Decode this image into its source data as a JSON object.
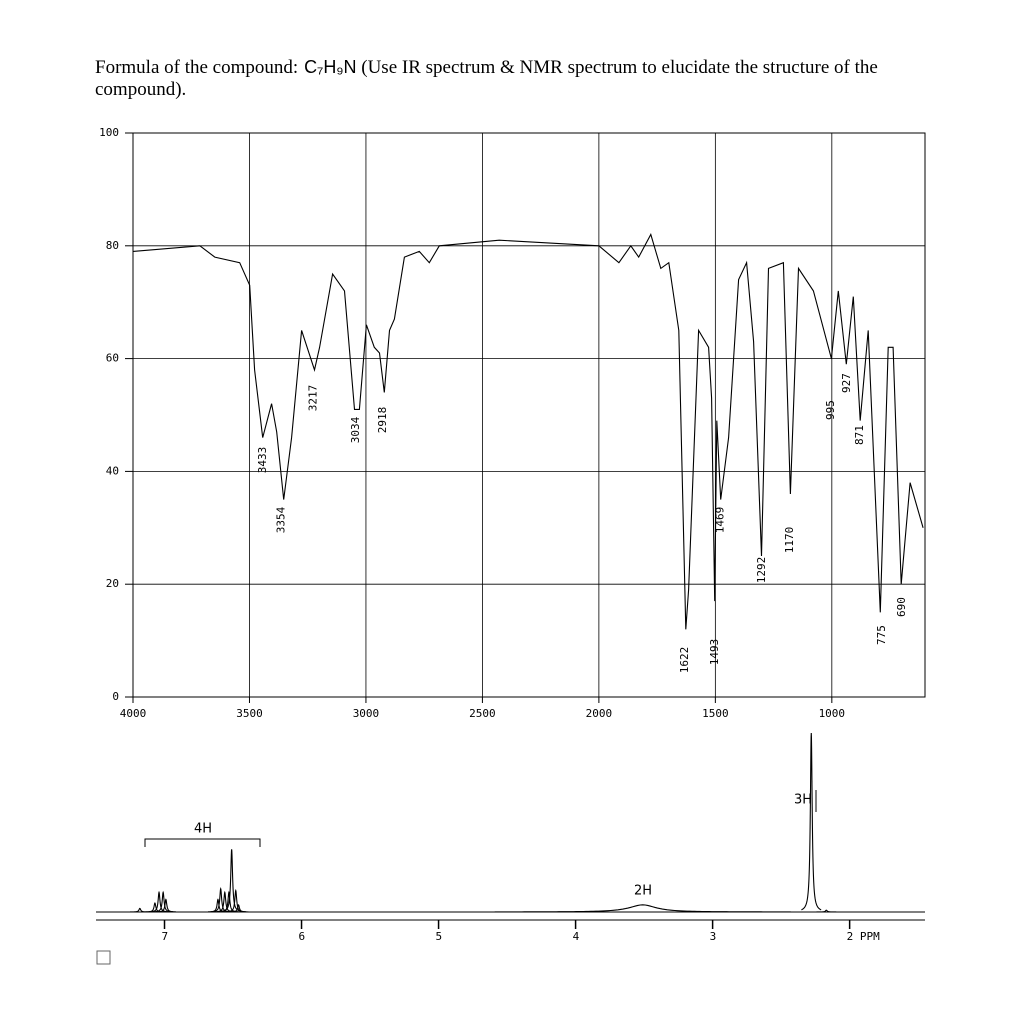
{
  "question": {
    "label": "Formula of the compound:",
    "formula": "C₇H₉N",
    "text": "(Use IR spectrum & NMR spectrum to elucidate the structure of the compound)."
  },
  "chart_data": [
    {
      "type": "line",
      "color": "#000000",
      "grid": true,
      "x": [
        4000,
        3713,
        3649,
        3542,
        3499,
        3478,
        3443,
        3405,
        3383,
        3353,
        3319,
        3276,
        3221,
        3199,
        3143,
        3092,
        3049,
        3028,
        2998,
        2964,
        2942,
        2921,
        2899,
        2878,
        2835,
        2771,
        2728,
        2685,
        2428,
        2000,
        1914,
        1863,
        1829,
        1777,
        1734,
        1700,
        1657,
        1627,
        1615,
        1572,
        1529,
        1516,
        1503,
        1494,
        1477,
        1443,
        1400,
        1366,
        1336,
        1302,
        1272,
        1208,
        1178,
        1143,
        1079,
        1002,
        972,
        938,
        908,
        878,
        844,
        792,
        758,
        737,
        702,
        664,
        608
      ],
      "values": [
        79,
        80,
        78,
        77,
        73,
        58,
        46,
        52,
        47,
        35,
        46,
        65,
        58,
        62,
        75,
        72,
        51,
        51,
        66,
        62,
        61,
        54,
        65,
        67,
        78,
        79,
        77,
        80,
        81,
        80,
        77,
        80,
        78,
        82,
        76,
        77,
        65,
        12,
        19,
        65,
        62,
        53,
        17,
        49,
        35,
        46,
        74,
        77,
        63,
        25,
        76,
        77,
        36,
        76,
        72,
        60,
        72,
        59,
        71,
        49,
        65,
        15,
        62,
        62,
        20,
        38,
        30
      ],
      "xlim": [
        4000,
        600
      ],
      "ylim": [
        0,
        100
      ],
      "xticks": [
        4000,
        3500,
        3000,
        2500,
        2000,
        1500,
        1000
      ],
      "yticks": [
        0,
        20,
        40,
        60,
        80,
        100
      ],
      "peak_labels": [
        3433,
        3354,
        3217,
        3034,
        2918,
        1622,
        1493,
        1469,
        1292,
        1170,
        995,
        927,
        871,
        775,
        690
      ]
    },
    {
      "type": "peaks",
      "color": "#000000",
      "xlim": [
        7.5,
        1.45
      ],
      "xticks": [
        7,
        6,
        5,
        4,
        3,
        {
          "value": 2,
          "label": "2 PPM"
        }
      ],
      "x": [
        7.18,
        7.07,
        7.04,
        7.01,
        6.99,
        6.61,
        6.59,
        6.56,
        6.53,
        6.51,
        6.48,
        6.46,
        3.51,
        2.28,
        2.17
      ],
      "values": [
        2,
        5,
        11,
        11,
        7,
        7,
        13,
        11,
        11,
        35,
        12,
        4,
        4,
        100,
        1
      ],
      "widths": [
        0.008,
        0.008,
        0.008,
        0.008,
        0.008,
        0.008,
        0.008,
        0.008,
        0.008,
        0.008,
        0.008,
        0.008,
        0.12,
        0.008,
        0.008
      ],
      "integrations": [
        "4H",
        "2H",
        "3H"
      ]
    }
  ]
}
